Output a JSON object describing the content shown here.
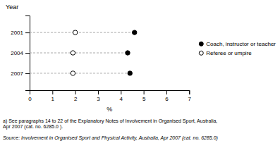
{
  "chart_data": {
    "type": "dot",
    "orientation": "horizontal",
    "xlabel": "%",
    "ylabel": "Year",
    "categories": [
      2001,
      2004,
      2007
    ],
    "series": [
      {
        "name": "Coach, instructor or teacher",
        "color": "#000000",
        "values": [
          4.6,
          4.3,
          4.4
        ],
        "marker": "circle",
        "line_style": "dashed"
      },
      {
        "name": "Referee or umpire",
        "color": "#000000",
        "values": [
          2.0,
          1.9,
          1.9
        ],
        "marker": "open-circle"
      }
    ],
    "xlim": [
      0,
      7
    ],
    "xticks": [
      0,
      1,
      2,
      3,
      4,
      5,
      6,
      7
    ],
    "ylim": [
      2009.5,
      1998.5
    ],
    "yticks": [
      2001,
      2004,
      2007
    ],
    "grid": false,
    "legend": "right",
    "annotations": [
      "a) See paragraphs 14 to 22 of the Explanatory Notes of Involvement in Organised Sport, Australia,\nApr 2007 (cat. no. 6285.0 )."
    ],
    "source": "Source: Involvement in Organised Sport and Physical Activity, Australia, Apr 2007 (cat. no. 6285.0)"
  }
}
